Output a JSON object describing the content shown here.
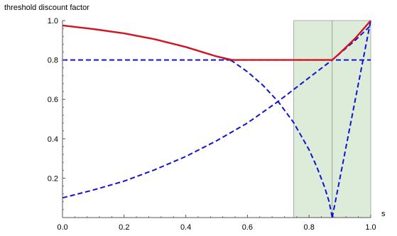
{
  "chart_data": {
    "type": "line",
    "title": "",
    "xlabel": "s",
    "ylabel": "threshold discount factor",
    "xlim": [
      0.0,
      1.0
    ],
    "ylim": [
      0.0,
      1.0
    ],
    "x_ticks": [
      0.0,
      0.2,
      0.4,
      0.6,
      0.8,
      1.0
    ],
    "x_tick_labels": [
      "0.0",
      "0.2",
      "0.4",
      "0.6",
      "0.8",
      "1.0"
    ],
    "y_ticks": [
      0.2,
      0.4,
      0.6,
      0.8,
      1.0
    ],
    "y_tick_labels": [
      "0.2",
      "0.4",
      "0.6",
      "0.8",
      "1.0"
    ],
    "grid": false,
    "legend": "none",
    "shaded_region": {
      "x": [
        0.75,
        1.0
      ],
      "color": "#dcecd8",
      "marker_x": 0.875
    },
    "series": [
      {
        "style": "dashed",
        "color": "#1212d6",
        "x": [
          0.0,
          1.0
        ],
        "y": [
          0.8,
          0.8
        ]
      },
      {
        "style": "dashed",
        "color": "#1212d6",
        "x": [
          0.0,
          0.1,
          0.2,
          0.3,
          0.4,
          0.5,
          0.55,
          0.6,
          0.65,
          0.7,
          0.75,
          0.8,
          0.825,
          0.85,
          0.865,
          0.875
        ],
        "y": [
          0.975,
          0.957,
          0.935,
          0.905,
          0.866,
          0.818,
          0.795,
          0.74,
          0.672,
          0.588,
          0.482,
          0.344,
          0.258,
          0.156,
          0.081,
          0.0
        ]
      },
      {
        "style": "dashed",
        "color": "#1212d6",
        "x": [
          0.0,
          0.1,
          0.2,
          0.3,
          0.4,
          0.5,
          0.6,
          0.7,
          0.75,
          0.8,
          0.875,
          0.95,
          1.0
        ],
        "y": [
          0.1,
          0.14,
          0.185,
          0.243,
          0.31,
          0.39,
          0.48,
          0.59,
          0.65,
          0.71,
          0.8,
          0.9,
          0.975
        ]
      },
      {
        "style": "dashed",
        "color": "#1212d6",
        "x": [
          0.875,
          1.0
        ],
        "y": [
          0.0,
          1.0
        ]
      },
      {
        "style": "solid",
        "color": "#d4141e",
        "x": [
          0.0,
          0.1,
          0.2,
          0.3,
          0.4,
          0.5,
          0.55,
          0.875,
          0.9,
          0.95,
          1.0
        ],
        "y": [
          0.975,
          0.957,
          0.935,
          0.905,
          0.866,
          0.818,
          0.8,
          0.8,
          0.835,
          0.91,
          1.0
        ]
      }
    ]
  }
}
